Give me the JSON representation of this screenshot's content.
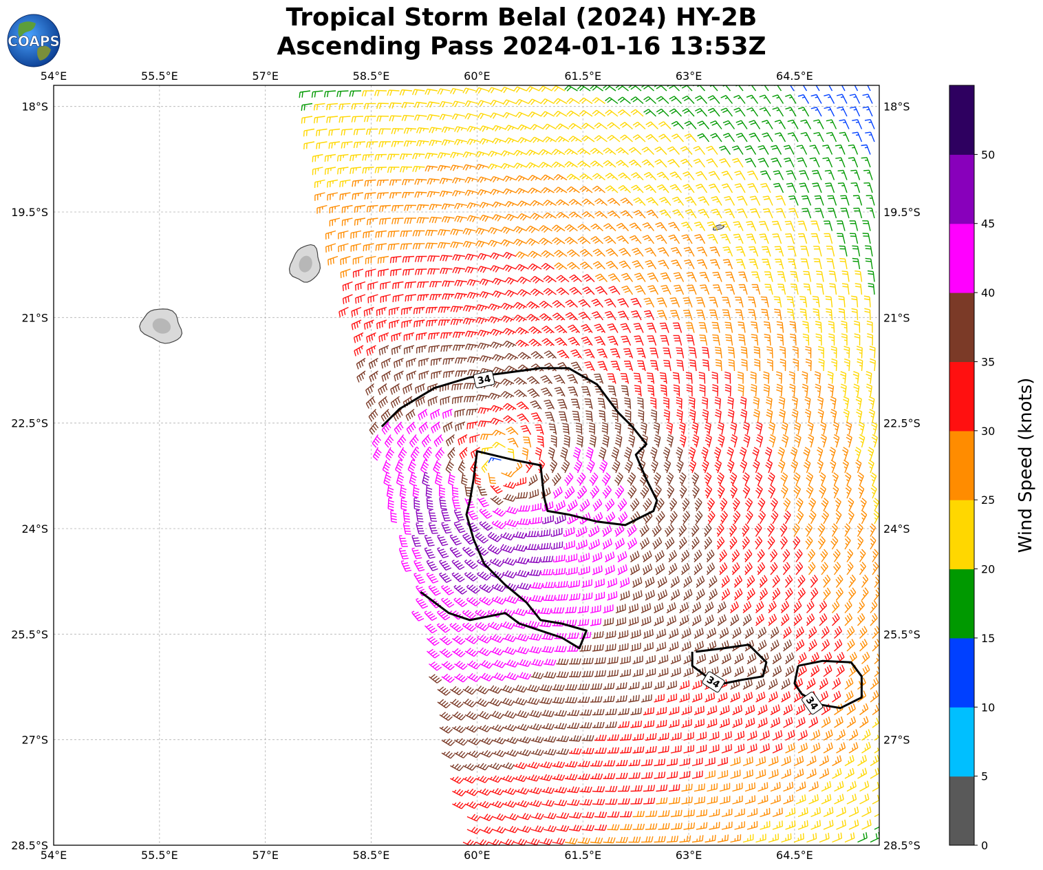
{
  "title": {
    "line1": "Tropical Storm Belal (2024) HY-2B",
    "line2": "Ascending Pass 2024-01-16 13:53Z"
  },
  "logo": {
    "text": "COAPS",
    "icon": "globe-logo-icon"
  },
  "map": {
    "lon_range": [
      54.0,
      65.7
    ],
    "lat_range": [
      -28.5,
      -17.7
    ],
    "grid": true,
    "lon_ticks": [
      54.0,
      55.5,
      57.0,
      58.5,
      60.0,
      61.5,
      63.0,
      64.5
    ],
    "lon_tick_labels": [
      "54°E",
      "55.5°E",
      "57°E",
      "58.5°E",
      "60°E",
      "61.5°E",
      "63°E",
      "64.5°E"
    ],
    "lat_ticks": [
      -18.0,
      -19.5,
      -21.0,
      -22.5,
      -24.0,
      -25.5,
      -27.0,
      -28.5
    ],
    "lat_tick_labels": [
      "18°S",
      "19.5°S",
      "21°S",
      "22.5°S",
      "24°S",
      "25.5°S",
      "27°S",
      "28.5°S"
    ],
    "land_color": "#d9d9d9",
    "coast_color": "#444444",
    "storm_center": {
      "lon": 60.35,
      "lat": -23.1
    }
  },
  "chart_data": {
    "type": "wind_barbs",
    "units": "knots",
    "barb_spacing_deg": 0.12,
    "colorbar": {
      "label": "Wind Speed (knots)",
      "bounds": [
        0,
        5,
        10,
        15,
        20,
        25,
        30,
        35,
        40,
        45,
        50,
        55
      ],
      "tick_labels": [
        "0",
        "5",
        "10",
        "15",
        "20",
        "25",
        "30",
        "35",
        "40",
        "45",
        "50"
      ],
      "colors": [
        "#595959",
        "#00bfff",
        "#0040ff",
        "#009900",
        "#ffd700",
        "#ff8c00",
        "#ff1010",
        "#7b3a27",
        "#ff00ff",
        "#8800bb",
        "#2e0060"
      ]
    },
    "contour_level": 34,
    "contour_label": "34",
    "contours": [
      {
        "lon": [
          58.65,
          58.9,
          59.4,
          59.9,
          60.3,
          60.9,
          61.3,
          61.7,
          62.0,
          62.2,
          62.4,
          62.25,
          62.4,
          62.55,
          62.5,
          62.1,
          61.7,
          61.3,
          61.0,
          60.95,
          60.9,
          60.5,
          60.0,
          59.95,
          59.9,
          59.85,
          59.95,
          60.1,
          60.4,
          60.7,
          60.9,
          61.2,
          61.55,
          61.45,
          61.2,
          60.9,
          60.6,
          60.4,
          59.9,
          59.6,
          59.2
        ],
        "lat": [
          -22.55,
          -22.3,
          -22.0,
          -21.85,
          -21.8,
          -21.72,
          -21.72,
          -21.95,
          -22.35,
          -22.55,
          -22.8,
          -22.95,
          -23.3,
          -23.6,
          -23.75,
          -23.95,
          -23.9,
          -23.8,
          -23.75,
          -23.55,
          -23.1,
          -23.02,
          -22.9,
          -23.3,
          -23.6,
          -23.8,
          -24.15,
          -24.5,
          -24.8,
          -25.05,
          -25.3,
          -25.35,
          -25.45,
          -25.7,
          -25.55,
          -25.45,
          -25.35,
          -25.2,
          -25.3,
          -25.2,
          -24.9
        ]
      },
      {
        "lon": [
          63.1,
          63.5,
          63.85,
          64.1,
          64.05,
          63.75,
          63.5,
          63.25,
          63.05,
          63.05
        ],
        "lat": [
          -25.75,
          -25.7,
          -25.65,
          -25.9,
          -26.1,
          -26.15,
          -26.2,
          -26.1,
          -25.95,
          -25.75
        ]
      },
      {
        "lon": [
          64.55,
          64.9,
          65.3,
          65.45,
          65.45,
          65.15,
          64.85,
          64.6,
          64.5,
          64.55
        ],
        "lat": [
          -25.95,
          -25.88,
          -25.9,
          -26.1,
          -26.4,
          -26.55,
          -26.5,
          -26.35,
          -26.2,
          -25.95
        ]
      }
    ],
    "contour_label_positions": [
      {
        "lon": 60.1,
        "lat": -21.88,
        "angle": -12
      },
      {
        "lon": 63.35,
        "lat": -26.18,
        "angle": 32
      },
      {
        "lon": 64.75,
        "lat": -26.48,
        "angle": 55
      }
    ]
  }
}
